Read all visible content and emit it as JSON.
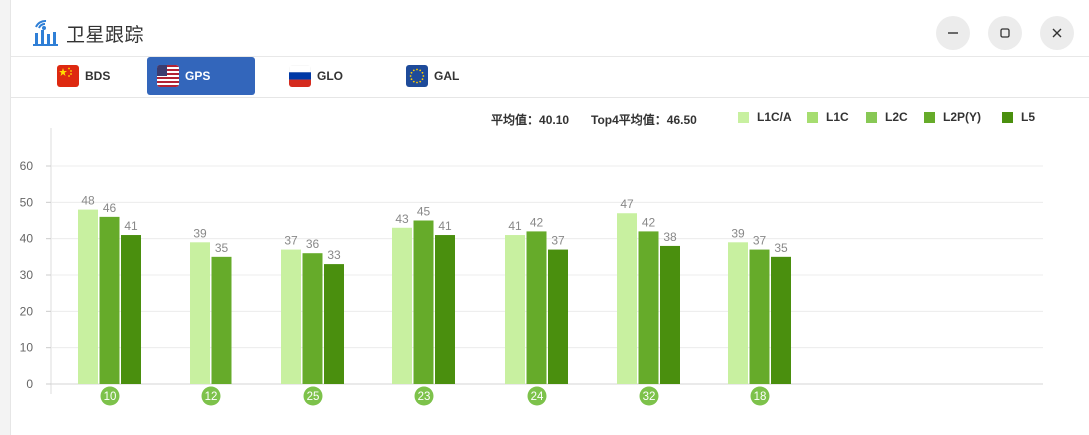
{
  "app": {
    "title": "卫星跟踪"
  },
  "tabs": [
    {
      "label": "BDS",
      "flag": "china-flag-icon",
      "active": false
    },
    {
      "label": "GPS",
      "flag": "usa-flag-icon",
      "active": true
    },
    {
      "label": "GLO",
      "flag": "russia-flag-icon",
      "active": false
    },
    {
      "label": "GAL",
      "flag": "eu-flag-icon",
      "active": false
    }
  ],
  "stats": {
    "avg_label": "平均值：",
    "avg_value": "40.10",
    "top4_label": "Top4平均值：",
    "top4_value": "46.50"
  },
  "colors": {
    "accent": "#3366bb",
    "L1C/A": "#c8f0a0",
    "L1C": "#a6dd70",
    "L2C": "#88c855",
    "L2P(Y)": "#66ab2a",
    "L5": "#4a8f0e",
    "badge": "#7dc24b"
  },
  "chart_data": {
    "type": "bar",
    "categories": [
      "10",
      "12",
      "25",
      "23",
      "24",
      "32",
      "18"
    ],
    "ylim": [
      0,
      60
    ],
    "yticks": [
      0,
      10,
      20,
      30,
      40,
      50,
      60
    ],
    "legend": [
      "L1C/A",
      "L1C",
      "L2C",
      "L2P(Y)",
      "L5"
    ],
    "legend_position": "top-right",
    "grid": true,
    "bars": [
      [
        {
          "series": "L1C/A",
          "value": 48
        },
        {
          "series": "L2P(Y)",
          "value": 46
        },
        {
          "series": "L5",
          "value": 41
        }
      ],
      [
        {
          "series": "L1C/A",
          "value": 39
        },
        {
          "series": "L2P(Y)",
          "value": 35
        }
      ],
      [
        {
          "series": "L1C/A",
          "value": 37
        },
        {
          "series": "L2P(Y)",
          "value": 36
        },
        {
          "series": "L5",
          "value": 33
        }
      ],
      [
        {
          "series": "L1C/A",
          "value": 43
        },
        {
          "series": "L2P(Y)",
          "value": 45
        },
        {
          "series": "L5",
          "value": 41
        }
      ],
      [
        {
          "series": "L1C/A",
          "value": 41
        },
        {
          "series": "L2P(Y)",
          "value": 42
        },
        {
          "series": "L5",
          "value": 37
        }
      ],
      [
        {
          "series": "L1C/A",
          "value": 47
        },
        {
          "series": "L2P(Y)",
          "value": 42
        },
        {
          "series": "L5",
          "value": 38
        }
      ],
      [
        {
          "series": "L1C/A",
          "value": 39
        },
        {
          "series": "L2P(Y)",
          "value": 37
        },
        {
          "series": "L5",
          "value": 35
        }
      ]
    ]
  }
}
